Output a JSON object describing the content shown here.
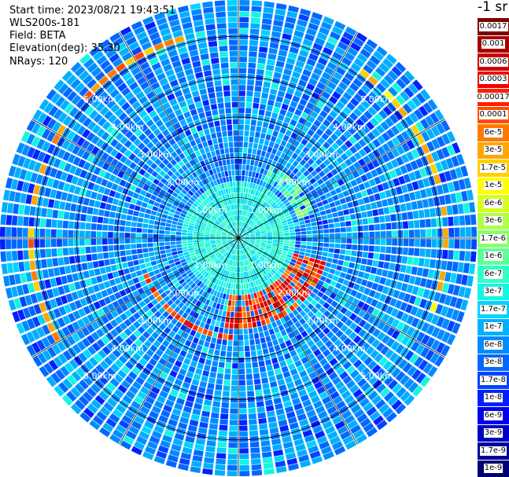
{
  "header": {
    "start_time": "Start time: 2023/08/21 19:43:51",
    "instrument": "WLS200s-181",
    "field": "Field: BETA",
    "elevation": "Elevation(deg): 35.30",
    "nrays": "NRays: 120"
  },
  "colorbar": {
    "unit_label": "-1 sr",
    "levels": [
      {
        "label": "0.0017",
        "color": "#7f0000"
      },
      {
        "label": "0.001",
        "color": "#a50000"
      },
      {
        "label": "0.0006",
        "color": "#cc0000"
      },
      {
        "label": "0.0003",
        "color": "#f20000"
      },
      {
        "label": "0.00017",
        "color": "#ff2000"
      },
      {
        "label": "0.0001",
        "color": "#ff4d00"
      },
      {
        "label": "6e-5",
        "color": "#ff7a00"
      },
      {
        "label": "3e-5",
        "color": "#ffa600"
      },
      {
        "label": "1.7e-5",
        "color": "#ffd000"
      },
      {
        "label": "1e-5",
        "color": "#ffff00"
      },
      {
        "label": "6e-6",
        "color": "#d6ff21"
      },
      {
        "label": "3e-6",
        "color": "#b0ff47"
      },
      {
        "label": "1.7e-6",
        "color": "#8aff6d"
      },
      {
        "label": "1e-6",
        "color": "#5dff99"
      },
      {
        "label": "6e-7",
        "color": "#33ffc4"
      },
      {
        "label": "3e-7",
        "color": "#14f5e2"
      },
      {
        "label": "1.7e-7",
        "color": "#00d4ff"
      },
      {
        "label": "1e-7",
        "color": "#00b0ff"
      },
      {
        "label": "6e-8",
        "color": "#008cff"
      },
      {
        "label": "3e-8",
        "color": "#0068ff"
      },
      {
        "label": "1.7e-8",
        "color": "#0044ff"
      },
      {
        "label": "1e-8",
        "color": "#0020ff"
      },
      {
        "label": "6e-9",
        "color": "#0000ea"
      },
      {
        "label": "3e-9",
        "color": "#0000c0"
      },
      {
        "label": "1.7e-9",
        "color": "#000096"
      },
      {
        "label": "1e-9",
        "color": "#00006e"
      }
    ]
  },
  "chart_data": {
    "type": "heatmap",
    "projection": "polar",
    "field": "BETA",
    "elevation_deg": 35.3,
    "nrays": 120,
    "max_range_km": 5.9,
    "range_ring_km": [
      1,
      2,
      3,
      4,
      5
    ],
    "range_ring_labels": [
      "1.00km",
      "2.00km",
      "3.00km",
      "4.00km",
      "5.00km"
    ],
    "ring_label_diagonals": [
      "NW",
      "NE",
      "SW",
      "SE"
    ],
    "spoke_step_deg": 30,
    "background_level_indices": [
      17,
      18,
      19
    ],
    "features": [
      {
        "description": "orange/red arc, west-northwest",
        "range_km": [
          5.0,
          5.15
        ],
        "azimuth_deg": [
          240,
          352
        ],
        "level_indices": [
          5,
          6,
          7,
          8
        ]
      },
      {
        "description": "yellow/orange arc, east",
        "range_km": [
          5.0,
          5.2
        ],
        "azimuth_deg": [
          32,
          118
        ],
        "level_indices": [
          7,
          8,
          9
        ]
      },
      {
        "description": "red arc, south-southwest",
        "range_km": [
          2.35,
          2.5
        ],
        "azimuth_deg": [
          180,
          250
        ],
        "level_indices": [
          3,
          4,
          5,
          6
        ]
      },
      {
        "description": "red cells, south-southeast",
        "range_km": [
          1.4,
          2.3
        ],
        "azimuth_deg": [
          105,
          190
        ],
        "level_indices": [
          2,
          3,
          4,
          5,
          6
        ]
      },
      {
        "description": "green cells, north-northeast",
        "range_km": [
          1.6,
          2.0
        ],
        "azimuth_deg": [
          20,
          72
        ],
        "level_indices": [
          12,
          13,
          14,
          15
        ]
      },
      {
        "description": "cyan near field",
        "range_km": [
          0,
          1.4
        ],
        "azimuth_deg": [
          0,
          360
        ],
        "level_indices": [
          14,
          15,
          16
        ]
      }
    ]
  }
}
